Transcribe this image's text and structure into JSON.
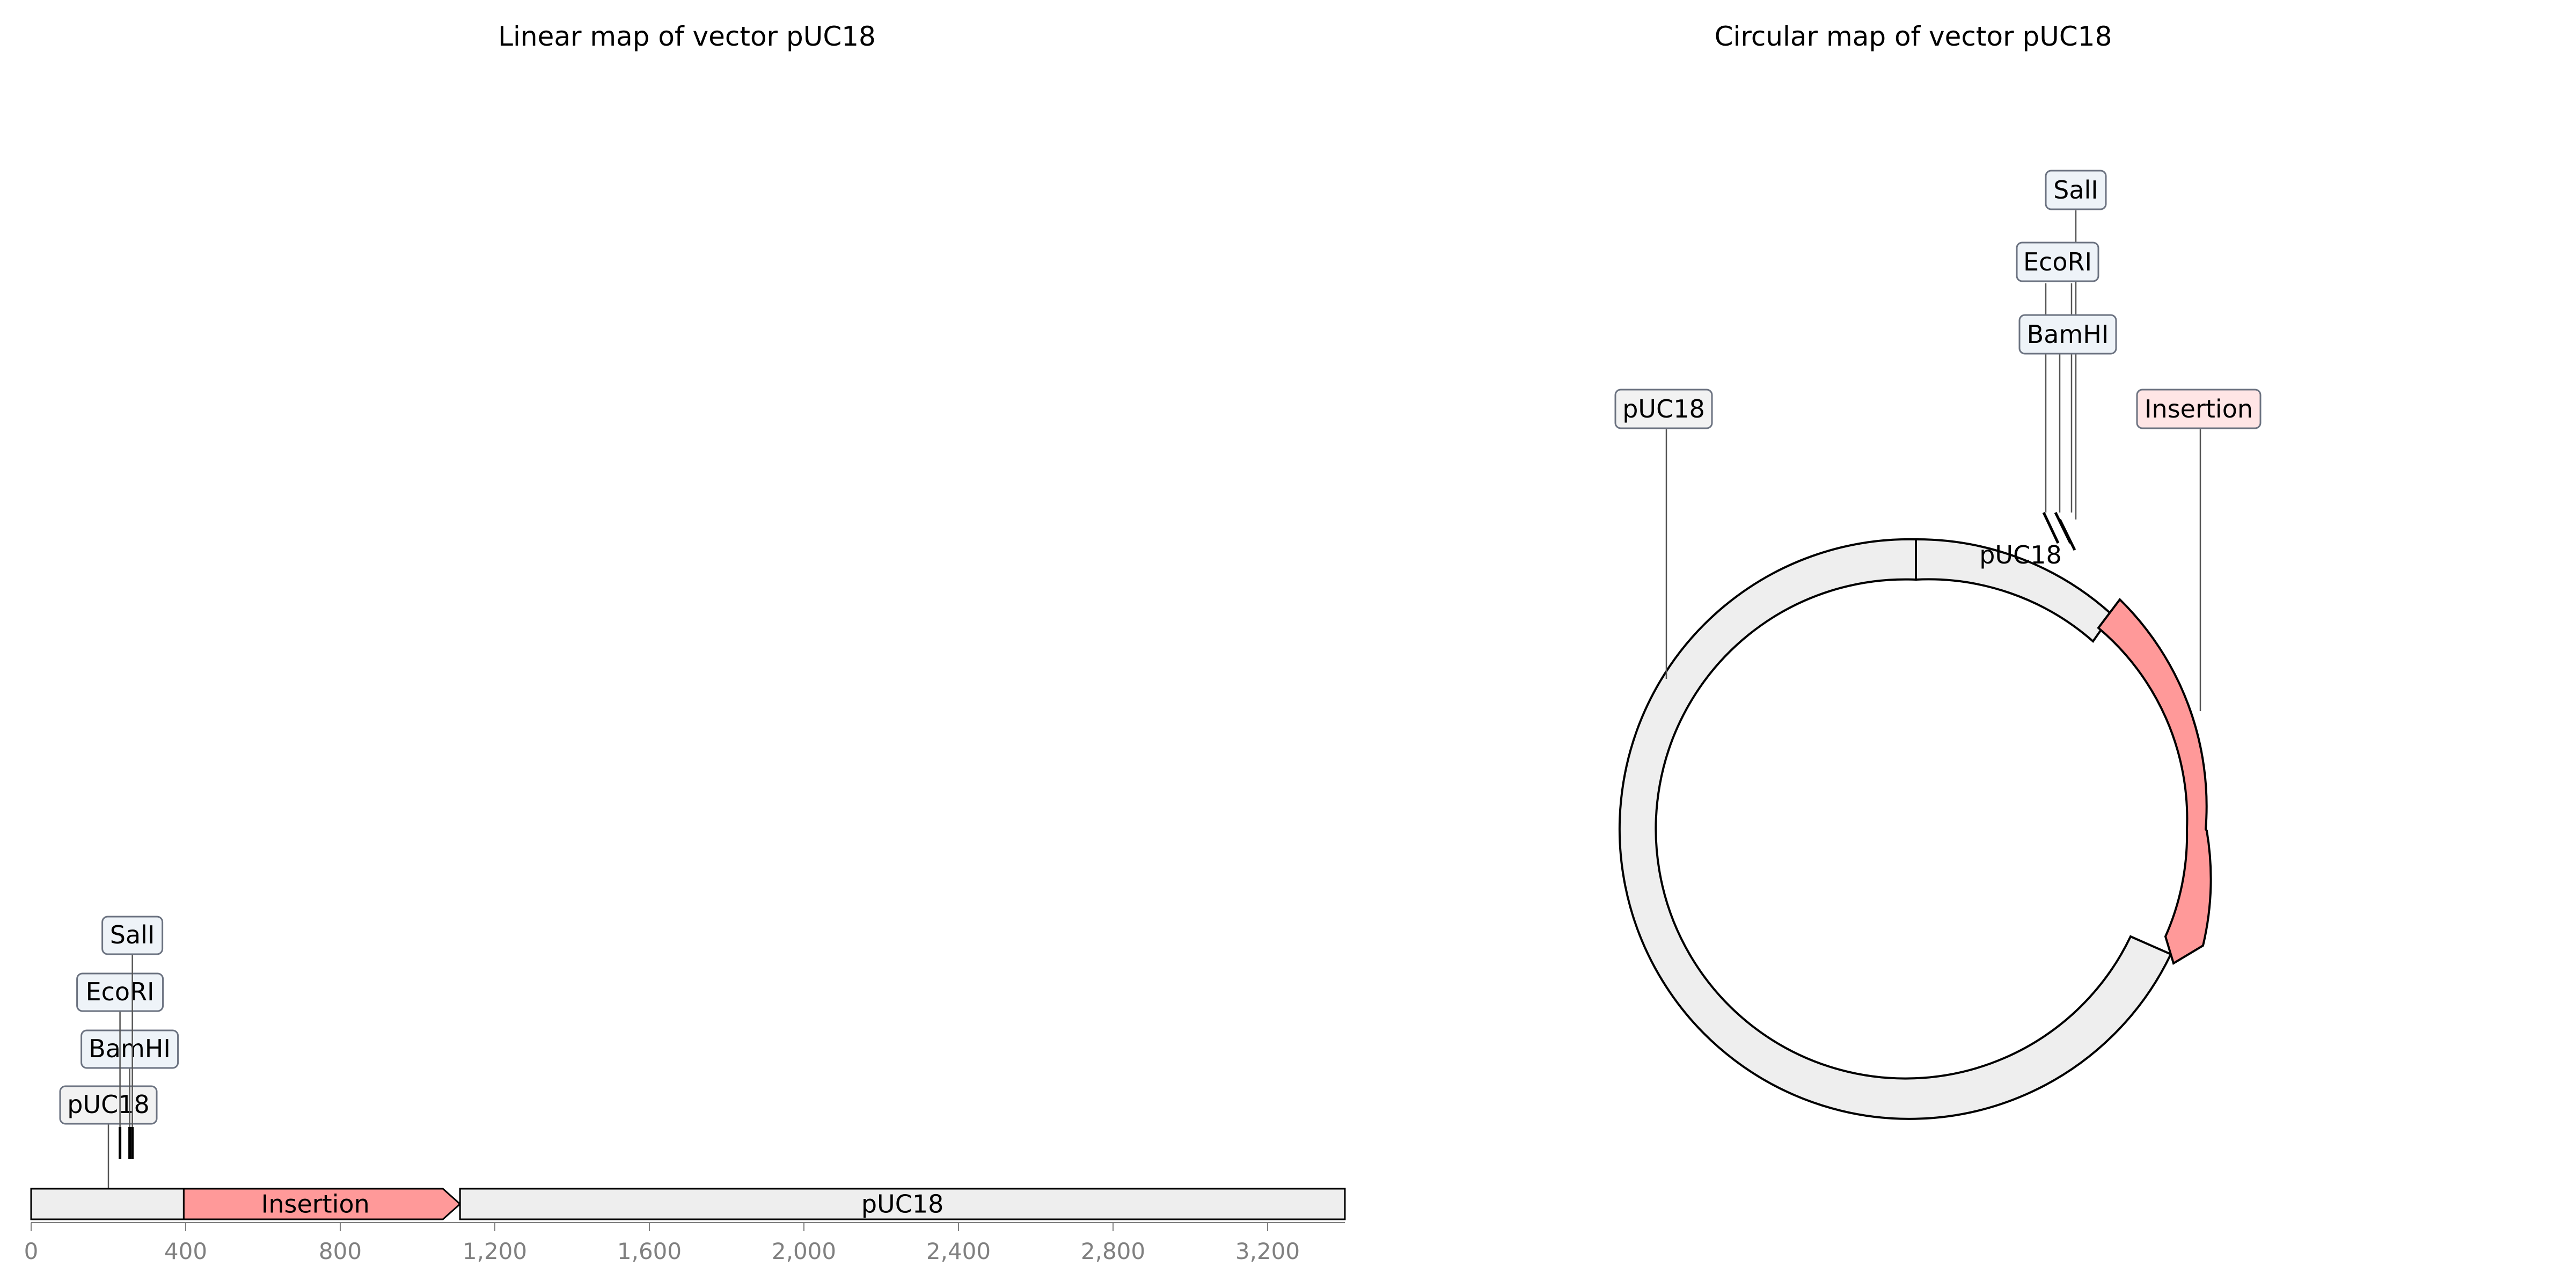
{
  "linear_map": {
    "title": "Linear map of vector pUC18",
    "axis": {
      "min": 0,
      "max": 3400,
      "ticks": [
        {
          "value": 0,
          "label": "0"
        },
        {
          "value": 400,
          "label": "400"
        },
        {
          "value": 800,
          "label": "800"
        },
        {
          "value": 1200,
          "label": "1,200"
        },
        {
          "value": 1600,
          "label": "1,600"
        },
        {
          "value": 2000,
          "label": "2,000"
        },
        {
          "value": 2400,
          "label": "2,400"
        },
        {
          "value": 2800,
          "label": "2,800"
        },
        {
          "value": 3200,
          "label": "3,200"
        }
      ]
    },
    "features": [
      {
        "label": "",
        "start": 0,
        "end": 395,
        "color": "#eeeeee",
        "arrow": false
      },
      {
        "label": "Insertion",
        "start": 395,
        "end": 1110,
        "color": "#ff9999",
        "arrow": true
      },
      {
        "label": "pUC18",
        "start": 1110,
        "end": 3400,
        "color": "#eeeeee",
        "arrow": false
      }
    ],
    "annotations": [
      {
        "label": "pUC18",
        "position": 200,
        "kind": "feature",
        "fill": "#f2f2f2"
      },
      {
        "label": "BamHI",
        "position": 255,
        "kind": "site",
        "fill": "#eef3f8"
      },
      {
        "label": "EcoRI",
        "position": 230,
        "kind": "site",
        "fill": "#eef3f8"
      },
      {
        "label": "SalI",
        "position": 262,
        "kind": "site",
        "fill": "#eef3f8"
      }
    ]
  },
  "circular_map": {
    "title": "Circular map of vector pUC18",
    "sequence_length": 2690,
    "segments": [
      {
        "label": "pUC18",
        "start": 0,
        "end": 305,
        "color": "#eeeeee",
        "arrow": true
      },
      {
        "label": "Insertion",
        "start": 305,
        "end": 1020,
        "color": "#ff9999",
        "arrow": true
      },
      {
        "label": "",
        "start": 1020,
        "end": 2690,
        "color": "#eeeeee",
        "arrow": false
      }
    ],
    "annotations": [
      {
        "label": "pUC18",
        "kind": "feature",
        "fill": "#f2f2f2"
      },
      {
        "label": "Insertion",
        "kind": "feature",
        "fill": "#ffe5e5"
      },
      {
        "label": "SalI",
        "kind": "site",
        "fill": "#eef3f8"
      },
      {
        "label": "EcoRI",
        "kind": "site",
        "fill": "#eef3f8"
      },
      {
        "label": "BamHI",
        "kind": "site",
        "fill": "#eef3f8"
      }
    ]
  }
}
